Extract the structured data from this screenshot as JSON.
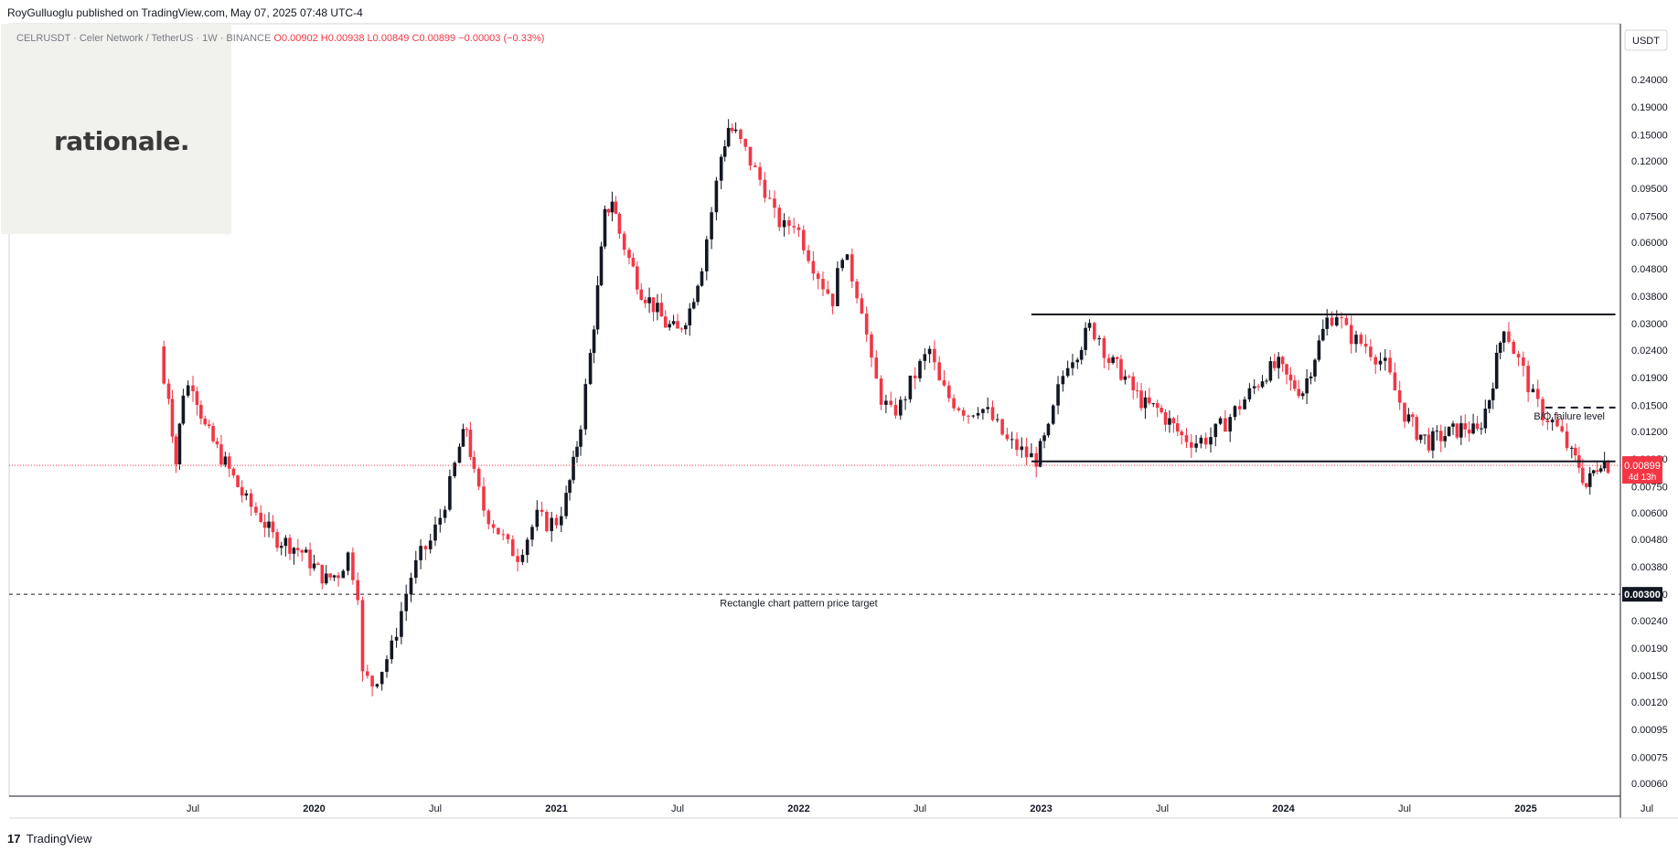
{
  "header": {
    "publisher": "RoyGulluoglu published on TradingView.com,",
    "date": "May 07, 2025 07:48 UTC-4"
  },
  "symbol": {
    "name": "CELRUSDT · Celer Network / TetherUS · 1W · BINANCE",
    "ohlc": "O0.00902  H0.00938  L0.00849  C0.00899  −0.00003 (−0.33%)"
  },
  "logo": {
    "text": "rationale."
  },
  "footer": {
    "brand": "TradingView",
    "mark": "17"
  },
  "colors": {
    "up": "#131722",
    "down": "#f23645",
    "last_price_badge": "#f23645",
    "target_badge": "#131722"
  },
  "chart_data": {
    "type": "candlestick",
    "scale": "log",
    "y_unit": "USDT",
    "y_ticks": [
      0.0006,
      0.00075,
      0.00095,
      0.0012,
      0.0015,
      0.0019,
      0.0024,
      0.003,
      0.0038,
      0.0048,
      0.006,
      0.0075,
      0.0095,
      0.012,
      0.015,
      0.019,
      0.024,
      0.03,
      0.038,
      0.048,
      0.06,
      0.075,
      0.095,
      0.12,
      0.15,
      0.19,
      0.24
    ],
    "y_tick_labels": [
      "0.00060",
      "0.00075",
      "0.00095",
      "0.00120",
      "0.00150",
      "0.00190",
      "0.00240",
      "0.00300",
      "0.00380",
      "0.00480",
      "0.00600",
      "0.00750",
      "0.00950",
      "0.01200",
      "0.01500",
      "0.01900",
      "0.02400",
      "0.03000",
      "0.03800",
      "0.04800",
      "0.06000",
      "0.07500",
      "0.09500",
      "0.12000",
      "0.15000",
      "0.19000",
      "0.24000"
    ],
    "x_ticks": [
      {
        "t": 2019.5,
        "label": "Jul"
      },
      {
        "t": 2020.0,
        "label": "2020"
      },
      {
        "t": 2020.5,
        "label": "Jul"
      },
      {
        "t": 2021.0,
        "label": "2021"
      },
      {
        "t": 2021.5,
        "label": "Jul"
      },
      {
        "t": 2022.0,
        "label": "2022"
      },
      {
        "t": 2022.5,
        "label": "Jul"
      },
      {
        "t": 2023.0,
        "label": "2023"
      },
      {
        "t": 2023.5,
        "label": "Jul"
      },
      {
        "t": 2024.0,
        "label": "2024"
      },
      {
        "t": 2024.5,
        "label": "Jul"
      },
      {
        "t": 2025.0,
        "label": "2025"
      },
      {
        "t": 2025.5,
        "label": "Jul"
      }
    ],
    "last_price": {
      "value": 0.00899,
      "label": "0.00899",
      "countdown": "4d 13h"
    },
    "target_price": {
      "value": 0.003,
      "label": "0.00300"
    },
    "rectangle": {
      "top": 0.0325,
      "bottom": 0.0093,
      "x_start": 2022.96,
      "x_end": 2025.37
    },
    "failure_level": {
      "value": 0.0147,
      "x_start": 2025.08,
      "x_end": 2025.37
    },
    "annotations": [
      {
        "text": "Rectangle chart pattern price target",
        "x": 2022.0,
        "y": 0.0027
      },
      {
        "text": "B/O failure level",
        "x": 2025.18,
        "y": 0.0133
      }
    ],
    "price_path": [
      [
        2019.36,
        0.0198
      ],
      [
        2019.4,
        0.0165
      ],
      [
        2019.43,
        0.0092
      ],
      [
        2019.46,
        0.017
      ],
      [
        2019.5,
        0.0182
      ],
      [
        2019.55,
        0.0124
      ],
      [
        2019.6,
        0.0103
      ],
      [
        2019.65,
        0.0086
      ],
      [
        2019.72,
        0.0066
      ],
      [
        2019.78,
        0.0058
      ],
      [
        2019.83,
        0.0049
      ],
      [
        2019.9,
        0.0046
      ],
      [
        2019.95,
        0.0043
      ],
      [
        2020.0,
        0.0038
      ],
      [
        2020.05,
        0.0034
      ],
      [
        2020.1,
        0.0036
      ],
      [
        2020.14,
        0.0042
      ],
      [
        2020.18,
        0.0031
      ],
      [
        2020.2,
        0.0015
      ],
      [
        2020.24,
        0.0014
      ],
      [
        2020.28,
        0.0016
      ],
      [
        2020.32,
        0.0019
      ],
      [
        2020.36,
        0.0026
      ],
      [
        2020.4,
        0.0035
      ],
      [
        2020.44,
        0.0042
      ],
      [
        2020.48,
        0.0047
      ],
      [
        2020.52,
        0.0058
      ],
      [
        2020.56,
        0.0076
      ],
      [
        2020.6,
        0.0105
      ],
      [
        2020.63,
        0.0124
      ],
      [
        2020.66,
        0.0082
      ],
      [
        2020.7,
        0.0062
      ],
      [
        2020.74,
        0.0055
      ],
      [
        2020.8,
        0.0045
      ],
      [
        2020.84,
        0.0042
      ],
      [
        2020.88,
        0.0049
      ],
      [
        2020.92,
        0.0058
      ],
      [
        2020.96,
        0.0055
      ],
      [
        2021.0,
        0.0056
      ],
      [
        2021.04,
        0.0068
      ],
      [
        2021.07,
        0.009
      ],
      [
        2021.1,
        0.013
      ],
      [
        2021.14,
        0.023
      ],
      [
        2021.17,
        0.04
      ],
      [
        2021.2,
        0.075
      ],
      [
        2021.23,
        0.087
      ],
      [
        2021.26,
        0.065
      ],
      [
        2021.3,
        0.052
      ],
      [
        2021.35,
        0.04
      ],
      [
        2021.4,
        0.035
      ],
      [
        2021.45,
        0.03
      ],
      [
        2021.5,
        0.028
      ],
      [
        2021.55,
        0.034
      ],
      [
        2021.6,
        0.05
      ],
      [
        2021.64,
        0.078
      ],
      [
        2021.68,
        0.125
      ],
      [
        2021.71,
        0.16
      ],
      [
        2021.74,
        0.15
      ],
      [
        2021.78,
        0.13
      ],
      [
        2021.82,
        0.11
      ],
      [
        2021.86,
        0.095
      ],
      [
        2021.9,
        0.075
      ],
      [
        2021.94,
        0.068
      ],
      [
        2021.98,
        0.072
      ],
      [
        2022.02,
        0.06
      ],
      [
        2022.06,
        0.05
      ],
      [
        2022.1,
        0.042
      ],
      [
        2022.14,
        0.037
      ],
      [
        2022.18,
        0.056
      ],
      [
        2022.22,
        0.045
      ],
      [
        2022.26,
        0.035
      ],
      [
        2022.3,
        0.021
      ],
      [
        2022.34,
        0.016
      ],
      [
        2022.38,
        0.014
      ],
      [
        2022.42,
        0.015
      ],
      [
        2022.46,
        0.018
      ],
      [
        2022.5,
        0.021
      ],
      [
        2022.54,
        0.024
      ],
      [
        2022.58,
        0.018
      ],
      [
        2022.62,
        0.016
      ],
      [
        2022.66,
        0.015
      ],
      [
        2022.7,
        0.014
      ],
      [
        2022.74,
        0.015
      ],
      [
        2022.78,
        0.014
      ],
      [
        2022.82,
        0.0125
      ],
      [
        2022.86,
        0.011
      ],
      [
        2022.9,
        0.0105
      ],
      [
        2022.94,
        0.0098
      ],
      [
        2022.98,
        0.0095
      ],
      [
        2023.03,
        0.012
      ],
      [
        2023.07,
        0.017
      ],
      [
        2023.11,
        0.022
      ],
      [
        2023.15,
        0.024
      ],
      [
        2023.2,
        0.029
      ],
      [
        2023.24,
        0.027
      ],
      [
        2023.28,
        0.022
      ],
      [
        2023.33,
        0.02
      ],
      [
        2023.38,
        0.017
      ],
      [
        2023.43,
        0.015
      ],
      [
        2023.48,
        0.0145
      ],
      [
        2023.53,
        0.013
      ],
      [
        2023.58,
        0.0115
      ],
      [
        2023.64,
        0.011
      ],
      [
        2023.7,
        0.0115
      ],
      [
        2023.76,
        0.013
      ],
      [
        2023.82,
        0.015
      ],
      [
        2023.88,
        0.0175
      ],
      [
        2023.93,
        0.02
      ],
      [
        2023.98,
        0.021
      ],
      [
        2024.03,
        0.018
      ],
      [
        2024.08,
        0.017
      ],
      [
        2024.13,
        0.023
      ],
      [
        2024.18,
        0.031
      ],
      [
        2024.22,
        0.033
      ],
      [
        2024.26,
        0.028
      ],
      [
        2024.3,
        0.026
      ],
      [
        2024.34,
        0.025
      ],
      [
        2024.38,
        0.023
      ],
      [
        2024.42,
        0.021
      ],
      [
        2024.46,
        0.017
      ],
      [
        2024.5,
        0.014
      ],
      [
        2024.55,
        0.012
      ],
      [
        2024.6,
        0.011
      ],
      [
        2024.65,
        0.0115
      ],
      [
        2024.7,
        0.012
      ],
      [
        2024.75,
        0.0125
      ],
      [
        2024.8,
        0.0118
      ],
      [
        2024.85,
        0.016
      ],
      [
        2024.88,
        0.022
      ],
      [
        2024.91,
        0.03
      ],
      [
        2024.95,
        0.024
      ],
      [
        2024.99,
        0.02
      ],
      [
        2025.03,
        0.016
      ],
      [
        2025.07,
        0.014
      ],
      [
        2025.11,
        0.013
      ],
      [
        2025.15,
        0.0115
      ],
      [
        2025.19,
        0.0098
      ],
      [
        2025.22,
        0.009
      ],
      [
        2025.25,
        0.0075
      ],
      [
        2025.28,
        0.0085
      ],
      [
        2025.31,
        0.0095
      ],
      [
        2025.34,
        0.009
      ]
    ]
  }
}
